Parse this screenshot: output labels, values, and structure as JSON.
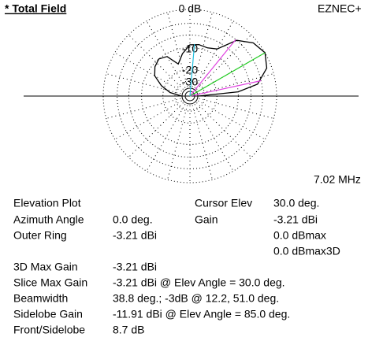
{
  "header": {
    "title": "* Total Field",
    "scale_label": "0 dB",
    "program": "EZNEC+",
    "frequency": "7.02 MHz"
  },
  "plot": {
    "rings": [
      0,
      -3,
      -6,
      -10,
      -20,
      -30
    ],
    "ring_labels": [
      {
        "value": -10,
        "label": "-10"
      },
      {
        "value": -20,
        "label": "-20"
      },
      {
        "value": -30,
        "label": "-30"
      }
    ],
    "cursor_elev": 30.0,
    "beam_edges": [
      12.2,
      51.0
    ],
    "sidelobe": {
      "elev": 85.0,
      "rel_gain": -8.7
    }
  },
  "pattern": {
    "elevation": [
      0,
      5,
      10,
      20,
      30,
      40,
      50,
      60,
      70,
      80,
      90,
      100,
      110,
      120,
      130,
      140,
      150,
      160,
      170,
      180
    ],
    "gain": [
      -40,
      -10,
      -4,
      -1,
      0,
      -0.8,
      -3,
      -8,
      -9,
      -8.7,
      -9,
      -12,
      -16,
      -11,
      -10,
      -11,
      -13,
      -18,
      -25,
      -40
    ]
  },
  "info": {
    "left": [
      {
        "label": "Elevation Plot"
      },
      {
        "label": "Azimuth Angle",
        "value": "0.0 deg."
      },
      {
        "label": "Outer Ring",
        "value": "-3.21 dBi"
      },
      {
        "label": "3D Max Gain",
        "value": "-3.21 dBi"
      },
      {
        "label": "Slice Max Gain",
        "value": "-3.21 dBi @ Elev Angle = 30.0 deg."
      },
      {
        "label": "Beamwidth",
        "value": "38.8 deg.; -3dB @ 12.2, 51.0 deg."
      },
      {
        "label": "Sidelobe Gain",
        "value": "-11.91 dBi @ Elev Angle = 85.0 deg."
      },
      {
        "label": "Front/Sidelobe",
        "value": "8.7 dB"
      }
    ],
    "right": [
      {
        "label": "Cursor Elev",
        "value": "30.0 deg."
      },
      {
        "label": "Gain",
        "value": "-3.21 dBi"
      },
      {
        "value": "0.0 dBmax"
      },
      {
        "value": "0.0 dBmax3D"
      }
    ]
  }
}
